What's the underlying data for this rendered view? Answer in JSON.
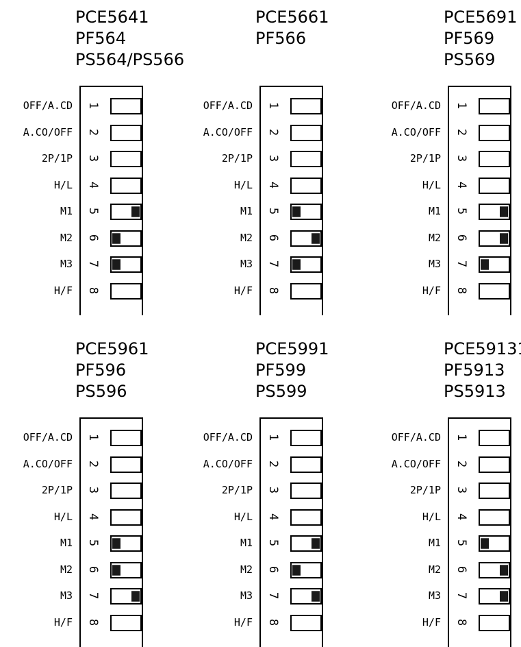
{
  "labels": [
    "OFF/A.CD",
    "A.CO/OFF",
    "2P/1P",
    "H/L",
    "M1",
    "M2",
    "M3",
    "H/F"
  ],
  "numbers": [
    "1",
    "2",
    "3",
    "4",
    "5",
    "6",
    "7",
    "8"
  ],
  "blocks": [
    {
      "title": [
        "PCE5641",
        "PF564",
        "PS564/PS566"
      ],
      "switches": [
        "off",
        "off",
        "off",
        "off",
        "right",
        "left",
        "left",
        "off"
      ]
    },
    {
      "title": [
        "PCE5661",
        "PF566"
      ],
      "switches": [
        "off",
        "off",
        "off",
        "off",
        "left",
        "right",
        "left",
        "off"
      ]
    },
    {
      "title": [
        "PCE5691",
        "PF569",
        "PS569"
      ],
      "switches": [
        "off",
        "off",
        "off",
        "off",
        "right",
        "right",
        "left",
        "off"
      ]
    },
    {
      "title": [
        "PCE5961",
        "PF596",
        "PS596"
      ],
      "switches": [
        "off",
        "off",
        "off",
        "off",
        "left",
        "left",
        "right",
        "off"
      ]
    },
    {
      "title": [
        "PCE5991",
        "PF599",
        "PS599"
      ],
      "switches": [
        "off",
        "off",
        "off",
        "off",
        "right",
        "left",
        "right",
        "off"
      ]
    },
    {
      "title": [
        "PCE59131",
        "PF5913",
        "PS5913"
      ],
      "switches": [
        "off",
        "off",
        "off",
        "off",
        "left",
        "right",
        "right",
        "off"
      ]
    }
  ],
  "colors": {
    "knob": "#1a1a1a",
    "line": "#000000",
    "background": "#ffffff"
  }
}
